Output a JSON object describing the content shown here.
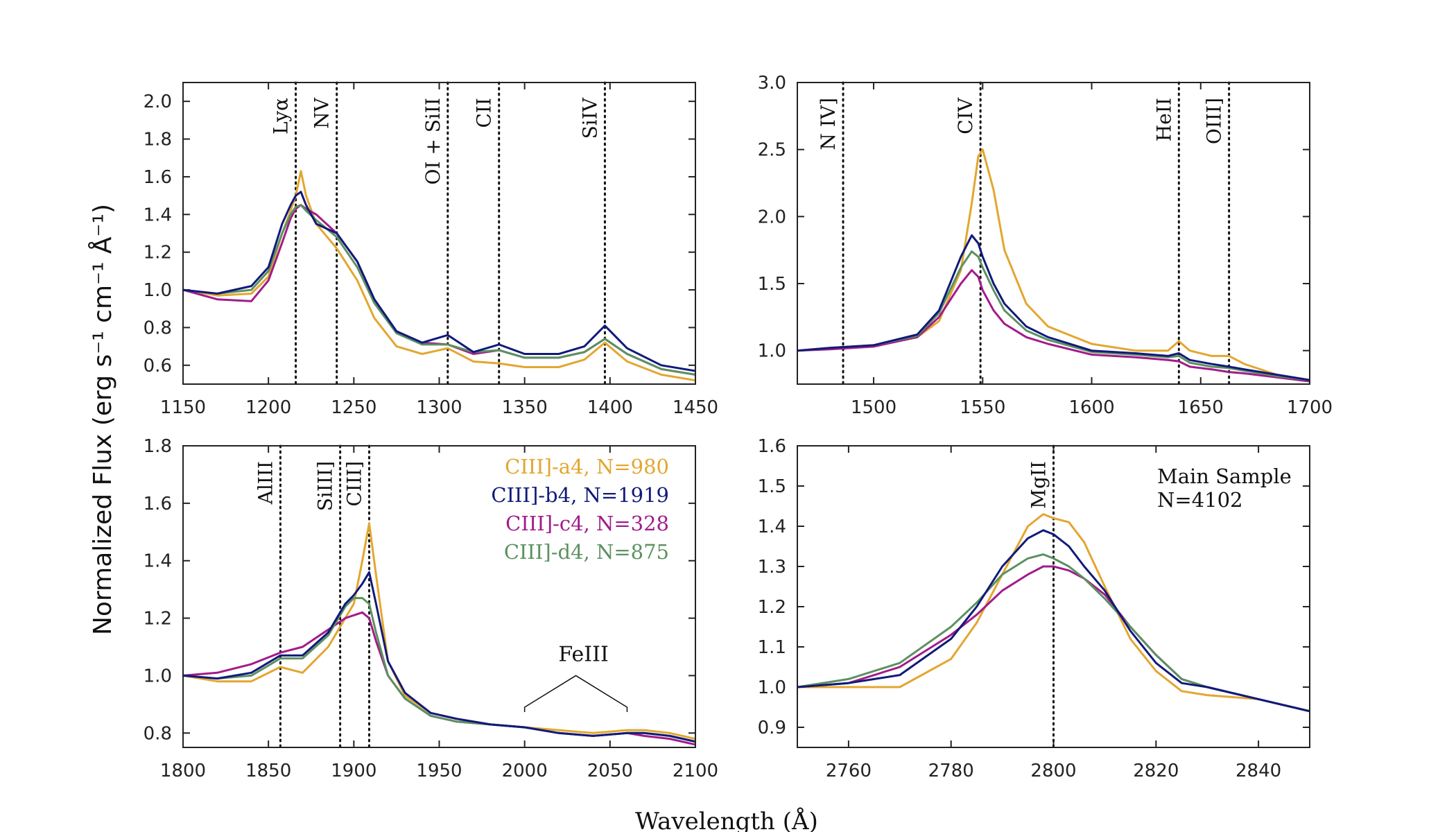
{
  "figure": {
    "xlabel": "Wavelength (Å)",
    "ylabel": "Normalized Flux (erg s⁻¹ cm⁻¹ Å⁻¹)"
  },
  "colors": {
    "a4": "#e3a62f",
    "b4": "#101a7a",
    "c4": "#a21b8a",
    "d4": "#5b9160"
  },
  "chart_data": [
    {
      "type": "line",
      "panel": "top-left",
      "xlim": [
        1150,
        1450
      ],
      "ylim": [
        0.5,
        2.1
      ],
      "xticks": [
        1150,
        1200,
        1250,
        1300,
        1350,
        1400,
        1450
      ],
      "yticks": [
        0.6,
        0.8,
        1.0,
        1.2,
        1.4,
        1.6,
        1.8,
        2.0
      ],
      "lines": [
        {
          "x": 1216,
          "label": "Lyα"
        },
        {
          "x": 1240,
          "label": "NV"
        },
        {
          "x": 1305,
          "label": "OI + SiII"
        },
        {
          "x": 1335,
          "label": "CII"
        },
        {
          "x": 1397,
          "label": "SiIV"
        }
      ],
      "series": [
        {
          "name": "a4",
          "x": [
            1150,
            1170,
            1190,
            1200,
            1208,
            1213,
            1216,
            1219,
            1222,
            1228,
            1240,
            1252,
            1262,
            1275,
            1290,
            1305,
            1320,
            1335,
            1350,
            1370,
            1385,
            1397,
            1410,
            1430,
            1450
          ],
          "y": [
            1.0,
            0.97,
            0.98,
            1.07,
            1.3,
            1.42,
            1.5,
            1.63,
            1.5,
            1.35,
            1.22,
            1.05,
            0.85,
            0.7,
            0.66,
            0.69,
            0.62,
            0.61,
            0.59,
            0.59,
            0.63,
            0.72,
            0.62,
            0.55,
            0.52
          ]
        },
        {
          "name": "b4",
          "x": [
            1150,
            1170,
            1190,
            1200,
            1208,
            1213,
            1216,
            1219,
            1222,
            1228,
            1240,
            1252,
            1262,
            1275,
            1290,
            1305,
            1320,
            1335,
            1350,
            1370,
            1385,
            1397,
            1410,
            1430,
            1450
          ],
          "y": [
            1.0,
            0.98,
            1.02,
            1.12,
            1.35,
            1.45,
            1.5,
            1.52,
            1.45,
            1.35,
            1.3,
            1.15,
            0.95,
            0.78,
            0.72,
            0.76,
            0.67,
            0.71,
            0.66,
            0.66,
            0.7,
            0.81,
            0.69,
            0.6,
            0.57
          ]
        },
        {
          "name": "c4",
          "x": [
            1150,
            1170,
            1190,
            1200,
            1208,
            1213,
            1216,
            1219,
            1222,
            1228,
            1240,
            1252,
            1262,
            1275,
            1290,
            1305,
            1320,
            1335,
            1350,
            1370,
            1385,
            1397,
            1410,
            1430,
            1450
          ],
          "y": [
            1.0,
            0.95,
            0.94,
            1.05,
            1.25,
            1.38,
            1.43,
            1.45,
            1.43,
            1.4,
            1.3,
            1.15,
            0.95,
            0.78,
            0.72,
            0.71,
            0.66,
            0.68,
            0.64,
            0.64,
            0.67,
            0.74,
            0.66,
            0.58,
            0.55
          ]
        },
        {
          "name": "d4",
          "x": [
            1150,
            1170,
            1190,
            1200,
            1208,
            1213,
            1216,
            1219,
            1222,
            1228,
            1240,
            1252,
            1262,
            1275,
            1290,
            1305,
            1320,
            1335,
            1350,
            1370,
            1385,
            1397,
            1410,
            1430,
            1450
          ],
          "y": [
            1.0,
            0.98,
            1.0,
            1.1,
            1.3,
            1.4,
            1.44,
            1.45,
            1.42,
            1.37,
            1.28,
            1.12,
            0.93,
            0.77,
            0.71,
            0.71,
            0.67,
            0.68,
            0.64,
            0.64,
            0.67,
            0.74,
            0.66,
            0.58,
            0.55
          ]
        }
      ]
    },
    {
      "type": "line",
      "panel": "top-right",
      "xlim": [
        1465,
        1700
      ],
      "ylim": [
        0.75,
        3.0
      ],
      "xticks": [
        1500,
        1550,
        1600,
        1650,
        1700
      ],
      "yticks": [
        1.0,
        1.5,
        2.0,
        2.5,
        3.0
      ],
      "lines": [
        {
          "x": 1486,
          "label": "N IV]"
        },
        {
          "x": 1549,
          "label": "CIV"
        },
        {
          "x": 1640,
          "label": "HeII"
        },
        {
          "x": 1663,
          "label": "OIII]"
        }
      ],
      "series": [
        {
          "name": "a4",
          "x": [
            1465,
            1480,
            1500,
            1520,
            1530,
            1540,
            1545,
            1548,
            1550,
            1555,
            1560,
            1570,
            1580,
            1600,
            1620,
            1635,
            1640,
            1645,
            1655,
            1663,
            1670,
            1685,
            1700
          ],
          "y": [
            1.0,
            1.02,
            1.04,
            1.1,
            1.22,
            1.6,
            2.1,
            2.45,
            2.5,
            2.2,
            1.75,
            1.35,
            1.18,
            1.05,
            1.0,
            1.0,
            1.07,
            1.0,
            0.96,
            0.96,
            0.9,
            0.82,
            0.78
          ]
        },
        {
          "name": "b4",
          "x": [
            1465,
            1480,
            1500,
            1520,
            1530,
            1540,
            1545,
            1548,
            1550,
            1555,
            1560,
            1570,
            1580,
            1600,
            1620,
            1635,
            1640,
            1645,
            1655,
            1663,
            1670,
            1685,
            1700
          ],
          "y": [
            1.0,
            1.02,
            1.04,
            1.12,
            1.3,
            1.7,
            1.86,
            1.8,
            1.7,
            1.5,
            1.35,
            1.18,
            1.1,
            1.0,
            0.98,
            0.96,
            0.98,
            0.93,
            0.9,
            0.88,
            0.86,
            0.82,
            0.78
          ]
        },
        {
          "name": "c4",
          "x": [
            1465,
            1480,
            1500,
            1520,
            1530,
            1540,
            1545,
            1548,
            1550,
            1555,
            1560,
            1570,
            1580,
            1600,
            1620,
            1635,
            1640,
            1645,
            1655,
            1663,
            1670,
            1685,
            1700
          ],
          "y": [
            1.0,
            1.01,
            1.03,
            1.1,
            1.25,
            1.5,
            1.6,
            1.55,
            1.45,
            1.3,
            1.2,
            1.1,
            1.05,
            0.97,
            0.95,
            0.93,
            0.92,
            0.88,
            0.86,
            0.84,
            0.83,
            0.8,
            0.77
          ]
        },
        {
          "name": "d4",
          "x": [
            1465,
            1480,
            1500,
            1520,
            1530,
            1540,
            1545,
            1548,
            1550,
            1555,
            1560,
            1570,
            1580,
            1600,
            1620,
            1635,
            1640,
            1645,
            1655,
            1663,
            1670,
            1685,
            1700
          ],
          "y": [
            1.0,
            1.02,
            1.04,
            1.11,
            1.28,
            1.62,
            1.74,
            1.7,
            1.62,
            1.45,
            1.3,
            1.15,
            1.08,
            0.99,
            0.97,
            0.95,
            0.96,
            0.91,
            0.88,
            0.87,
            0.85,
            0.81,
            0.78
          ]
        }
      ]
    },
    {
      "type": "line",
      "panel": "bottom-left",
      "xlim": [
        1800,
        2100
      ],
      "ylim": [
        0.75,
        1.8
      ],
      "xticks": [
        1800,
        1850,
        1900,
        1950,
        2000,
        2050,
        2100
      ],
      "yticks": [
        0.8,
        1.0,
        1.2,
        1.4,
        1.6,
        1.8
      ],
      "lines": [
        {
          "x": 1857,
          "label": "AlIII"
        },
        {
          "x": 1892,
          "label": "SiIII]"
        },
        {
          "x": 1909,
          "label": "CIII]"
        }
      ],
      "annotation": {
        "label": "FeIII",
        "x1": 2000,
        "x2": 2060,
        "x_peak": 2030,
        "y_base": 0.89,
        "y_peak": 1.0,
        "y_text": 1.05
      },
      "legend": {
        "position": "top-right",
        "entries": [
          {
            "name": "a4",
            "label": "CIII]-a4, N=980"
          },
          {
            "name": "b4",
            "label": "CIII]-b4, N=1919"
          },
          {
            "name": "c4",
            "label": "CIII]-c4, N=328"
          },
          {
            "name": "d4",
            "label": "CIII]-d4, N=875"
          }
        ]
      },
      "series": [
        {
          "name": "a4",
          "x": [
            1800,
            1820,
            1840,
            1857,
            1870,
            1885,
            1895,
            1900,
            1905,
            1909,
            1913,
            1920,
            1930,
            1945,
            1960,
            1980,
            2000,
            2020,
            2040,
            2060,
            2070,
            2085,
            2100
          ],
          "y": [
            1.0,
            0.98,
            0.98,
            1.03,
            1.01,
            1.1,
            1.2,
            1.25,
            1.4,
            1.53,
            1.35,
            1.05,
            0.93,
            0.87,
            0.85,
            0.83,
            0.82,
            0.81,
            0.8,
            0.81,
            0.81,
            0.8,
            0.78
          ]
        },
        {
          "name": "b4",
          "x": [
            1800,
            1820,
            1840,
            1857,
            1870,
            1885,
            1895,
            1900,
            1905,
            1909,
            1913,
            1920,
            1930,
            1945,
            1960,
            1980,
            2000,
            2020,
            2040,
            2060,
            2070,
            2085,
            2100
          ],
          "y": [
            1.0,
            0.99,
            1.01,
            1.07,
            1.07,
            1.15,
            1.25,
            1.28,
            1.32,
            1.36,
            1.25,
            1.05,
            0.94,
            0.87,
            0.85,
            0.83,
            0.82,
            0.8,
            0.79,
            0.8,
            0.8,
            0.79,
            0.77
          ]
        },
        {
          "name": "c4",
          "x": [
            1800,
            1820,
            1840,
            1857,
            1870,
            1885,
            1895,
            1900,
            1905,
            1909,
            1913,
            1920,
            1930,
            1945,
            1960,
            1980,
            2000,
            2020,
            2040,
            2060,
            2070,
            2085,
            2100
          ],
          "y": [
            1.0,
            1.01,
            1.04,
            1.08,
            1.1,
            1.16,
            1.2,
            1.21,
            1.22,
            1.2,
            1.12,
            1.0,
            0.92,
            0.86,
            0.84,
            0.83,
            0.82,
            0.8,
            0.79,
            0.8,
            0.79,
            0.78,
            0.76
          ]
        },
        {
          "name": "d4",
          "x": [
            1800,
            1820,
            1840,
            1857,
            1870,
            1885,
            1895,
            1900,
            1905,
            1909,
            1913,
            1920,
            1930,
            1945,
            1960,
            1980,
            2000,
            2020,
            2040,
            2060,
            2070,
            2085,
            2100
          ],
          "y": [
            1.0,
            0.99,
            1.0,
            1.06,
            1.06,
            1.14,
            1.24,
            1.27,
            1.27,
            1.25,
            1.15,
            1.0,
            0.92,
            0.86,
            0.84,
            0.83,
            0.82,
            0.8,
            0.79,
            0.8,
            0.8,
            0.79,
            0.77
          ]
        }
      ]
    },
    {
      "type": "line",
      "panel": "bottom-right",
      "xlim": [
        2750,
        2850
      ],
      "ylim": [
        0.85,
        1.6
      ],
      "xticks": [
        2760,
        2780,
        2800,
        2820,
        2840
      ],
      "yticks": [
        0.9,
        1.0,
        1.1,
        1.2,
        1.3,
        1.4,
        1.5,
        1.6
      ],
      "lines": [
        {
          "x": 2800,
          "label": "MgII"
        }
      ],
      "inset_text": [
        "Main Sample",
        "N=4102"
      ],
      "series": [
        {
          "name": "a4",
          "x": [
            2750,
            2760,
            2770,
            2780,
            2785,
            2790,
            2795,
            2798,
            2800,
            2803,
            2806,
            2810,
            2815,
            2820,
            2825,
            2830,
            2840,
            2850
          ],
          "y": [
            1.0,
            1.0,
            1.0,
            1.07,
            1.16,
            1.28,
            1.4,
            1.43,
            1.42,
            1.41,
            1.36,
            1.25,
            1.12,
            1.04,
            0.99,
            0.98,
            0.97,
            0.94
          ]
        },
        {
          "name": "b4",
          "x": [
            2750,
            2760,
            2770,
            2780,
            2785,
            2790,
            2795,
            2798,
            2800,
            2803,
            2806,
            2810,
            2815,
            2820,
            2825,
            2830,
            2840,
            2850
          ],
          "y": [
            1.0,
            1.01,
            1.03,
            1.12,
            1.2,
            1.3,
            1.37,
            1.39,
            1.38,
            1.35,
            1.3,
            1.24,
            1.14,
            1.06,
            1.01,
            1.0,
            0.97,
            0.94
          ]
        },
        {
          "name": "c4",
          "x": [
            2750,
            2760,
            2770,
            2780,
            2785,
            2790,
            2795,
            2798,
            2800,
            2803,
            2806,
            2810,
            2815,
            2820,
            2825,
            2830,
            2840,
            2850
          ],
          "y": [
            1.0,
            1.01,
            1.05,
            1.13,
            1.18,
            1.24,
            1.28,
            1.3,
            1.3,
            1.29,
            1.27,
            1.23,
            1.15,
            1.08,
            1.02,
            1.0,
            0.97,
            0.94
          ]
        },
        {
          "name": "d4",
          "x": [
            2750,
            2760,
            2770,
            2780,
            2785,
            2790,
            2795,
            2798,
            2800,
            2803,
            2806,
            2810,
            2815,
            2820,
            2825,
            2830,
            2840,
            2850
          ],
          "y": [
            1.0,
            1.02,
            1.06,
            1.15,
            1.21,
            1.28,
            1.32,
            1.33,
            1.32,
            1.3,
            1.27,
            1.22,
            1.15,
            1.08,
            1.02,
            1.0,
            0.97,
            0.94
          ]
        }
      ]
    }
  ]
}
